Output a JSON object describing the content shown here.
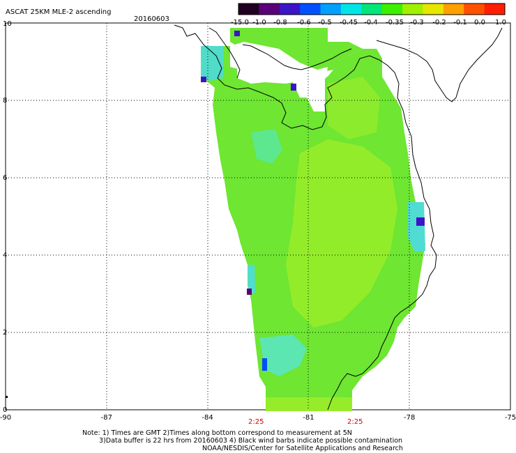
{
  "title": "ASCAT 25KM MLE-2 ascending",
  "date": "20160603",
  "colorbar": {
    "ticks": [
      "-15.0",
      "-1.0",
      "-0.8",
      "-0.6",
      "-0.5",
      "-0.45",
      "-0.4",
      "-0.35",
      "-0.3",
      "-0.2",
      "-0.1",
      "0.0",
      "1.0"
    ],
    "colors": [
      "#200020",
      "#5a0078",
      "#3c14c8",
      "#0050ff",
      "#00a0ff",
      "#00e6e6",
      "#00e678",
      "#3cf000",
      "#a0f000",
      "#e6e600",
      "#ffa000",
      "#ff5000",
      "#ff1e00"
    ]
  },
  "axes": {
    "lon_labels": [
      "-90",
      "-87",
      "-84",
      "-81",
      "-78",
      "-75"
    ],
    "lat_labels": [
      "10",
      "8",
      "6",
      "4",
      "2",
      "0"
    ],
    "lon_range": [
      -90,
      -75
    ],
    "lat_range": [
      0,
      10
    ]
  },
  "times": [
    "2:25",
    "2:25"
  ],
  "notes": [
    "Note: 1) Times are GMT 2)Times along bottom correspond to measurement at 5N",
    "3)Data buffer is 22 hrs from 20160603 4) Black wind barbs indicate possible contamination",
    "NOAA/NESDIS/Center for Satellite Applications and Research"
  ],
  "palette": {
    "swath_main": "#6ee632",
    "swath_light": "#a0ee28",
    "swath_cyan": "#5ae6a0",
    "swath_blue": "#3c14c8",
    "coast": "#000000"
  }
}
